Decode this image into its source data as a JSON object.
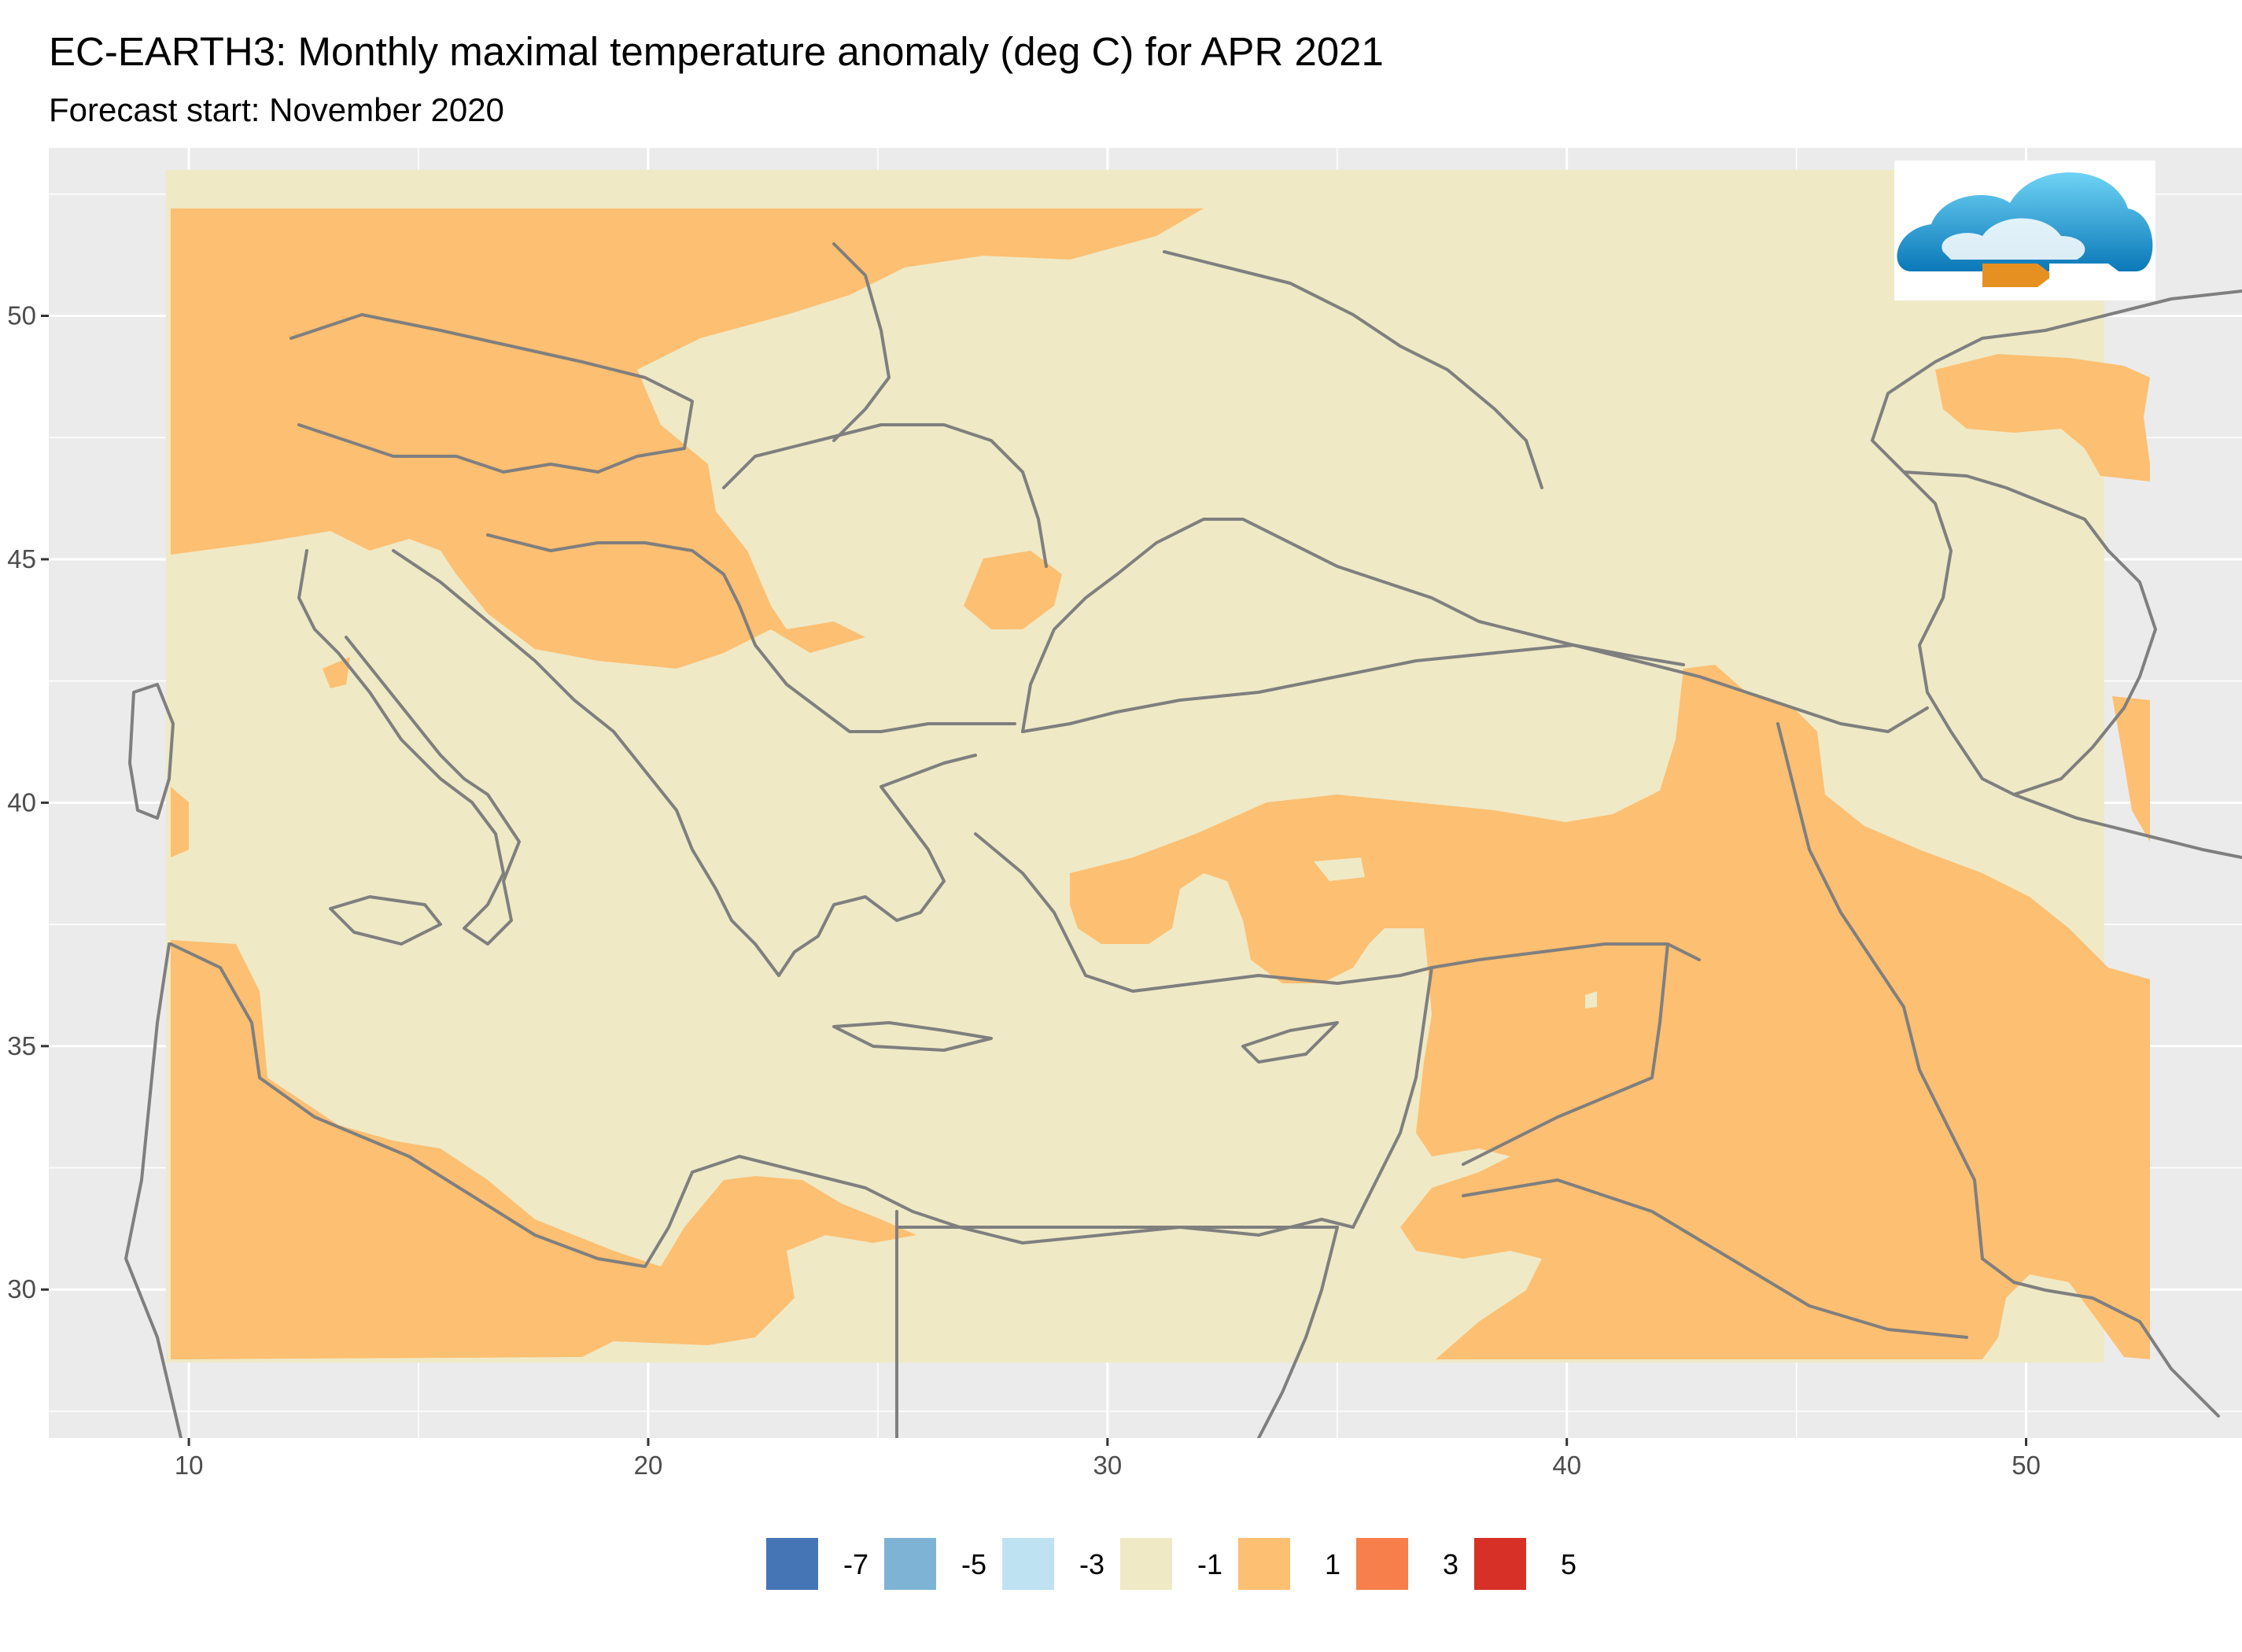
{
  "title": "EC-EARTH3: Monthly maximal temperature anomaly (deg C) for APR 2021",
  "subtitle": "Forecast start: November 2020",
  "map": {
    "lon_range": [
      6.95,
      54.7
    ],
    "lat_range": [
      26.95,
      53.45
    ],
    "data_extent": {
      "lon": [
        9.5,
        51.7
      ],
      "lat": [
        28.5,
        53.0
      ]
    },
    "x_ticks": [
      10,
      20,
      30,
      40,
      50
    ],
    "y_ticks": [
      30,
      35,
      40,
      45,
      50
    ],
    "grid": true,
    "panel_color": "#ebebeb",
    "border_color": "#808080",
    "anomaly_colors": {
      "neutral": "#efe9c6",
      "warm": "#fdbf71"
    }
  },
  "logo": {
    "name": "cloud-logo"
  },
  "legend": {
    "position": "bottom",
    "items": [
      {
        "label": "-7",
        "color": "#4575b4"
      },
      {
        "label": "-5",
        "color": "#7eb3d5"
      },
      {
        "label": "-3",
        "color": "#bee2f1"
      },
      {
        "label": "-1",
        "color": "#efe9c6"
      },
      {
        "label": "1",
        "color": "#fdbf71"
      },
      {
        "label": "3",
        "color": "#f67f4b"
      },
      {
        "label": "5",
        "color": "#d73027"
      }
    ]
  }
}
